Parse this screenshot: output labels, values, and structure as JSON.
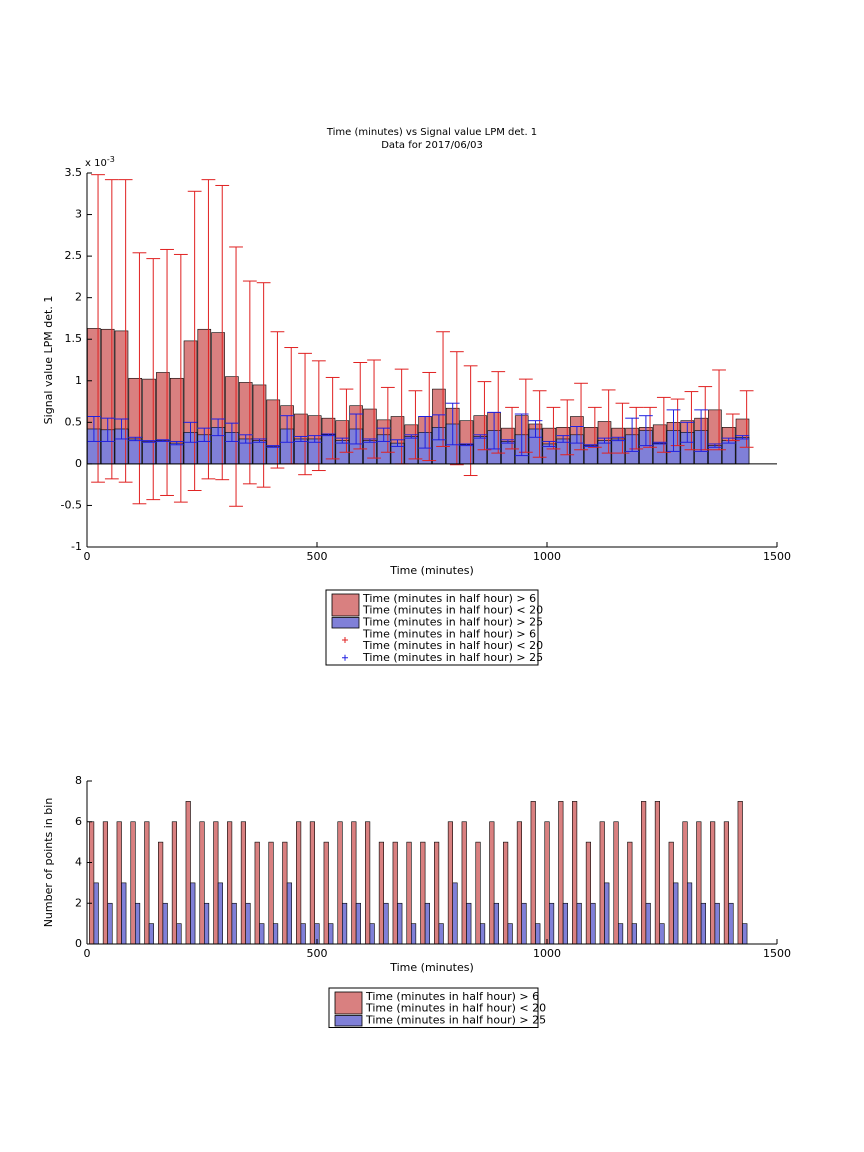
{
  "chart_data": [
    {
      "type": "bar_overlay_error",
      "title": "Time (minutes) vs Signal value LPM det. 1",
      "subtitle": "Data for 2017/06/03",
      "x_label": "Time (minutes)",
      "y_label": "Signal value LPM det. 1",
      "y_exponent_label": {
        "base": "x 10",
        "exponent": "-3"
      },
      "x": [
        15,
        45,
        75,
        105,
        135,
        165,
        195,
        225,
        255,
        285,
        315,
        345,
        375,
        405,
        435,
        465,
        495,
        525,
        555,
        585,
        615,
        645,
        675,
        705,
        735,
        765,
        795,
        825,
        855,
        885,
        915,
        945,
        975,
        1005,
        1035,
        1065,
        1095,
        1125,
        1155,
        1185,
        1215,
        1245,
        1275,
        1305,
        1335,
        1365,
        1395,
        1425
      ],
      "xlim": [
        0,
        1500
      ],
      "xticks": [
        0,
        500,
        1000,
        1500
      ],
      "ylim": [
        -1,
        3.5
      ],
      "yticks": [
        -1,
        -0.5,
        0,
        0.5,
        1,
        1.5,
        2,
        2.5,
        3,
        3.5
      ],
      "series": [
        {
          "name": [
            "Time (minutes in half hour) > 6",
            "Time (minutes in half hour) < 20"
          ],
          "color": "#d98080",
          "error_color": "#e02020",
          "values": [
            1.63,
            1.62,
            1.6,
            1.03,
            1.02,
            1.1,
            1.03,
            1.48,
            1.62,
            1.58,
            1.05,
            0.98,
            0.95,
            0.77,
            0.7,
            0.6,
            0.58,
            0.55,
            0.52,
            0.7,
            0.66,
            0.53,
            0.57,
            0.47,
            0.57,
            0.9,
            0.67,
            0.52,
            0.58,
            0.62,
            0.43,
            0.58,
            0.48,
            0.43,
            0.44,
            0.57,
            0.44,
            0.51,
            0.43,
            0.43,
            0.44,
            0.47,
            0.5,
            0.52,
            0.55,
            0.65,
            0.44,
            0.54
          ],
          "errors": [
            1.85,
            1.8,
            1.82,
            1.51,
            1.45,
            1.48,
            1.49,
            1.8,
            1.8,
            1.77,
            1.56,
            1.22,
            1.23,
            0.82,
            0.7,
            0.73,
            0.66,
            0.49,
            0.38,
            0.52,
            0.59,
            0.39,
            0.57,
            0.41,
            0.53,
            0.69,
            0.68,
            0.66,
            0.41,
            0.49,
            0.25,
            0.44,
            0.4,
            0.25,
            0.33,
            0.4,
            0.24,
            0.38,
            0.3,
            0.25,
            0.24,
            0.33,
            0.28,
            0.35,
            0.38,
            0.48,
            0.16,
            0.34
          ]
        },
        {
          "name": "Time (minutes in half hour) > 25",
          "color": "#8080d8",
          "error_color": "#2020e0",
          "values": [
            0.42,
            0.41,
            0.42,
            0.3,
            0.27,
            0.28,
            0.25,
            0.38,
            0.35,
            0.44,
            0.38,
            0.3,
            0.28,
            0.21,
            0.42,
            0.3,
            0.3,
            0.35,
            0.28,
            0.42,
            0.28,
            0.35,
            0.25,
            0.33,
            0.38,
            0.44,
            0.48,
            0.23,
            0.33,
            0.4,
            0.27,
            0.35,
            0.42,
            0.24,
            0.3,
            0.35,
            0.22,
            0.28,
            0.3,
            0.35,
            0.4,
            0.25,
            0.4,
            0.38,
            0.4,
            0.22,
            0.28,
            0.32
          ],
          "errors": [
            0.15,
            0.14,
            0.12,
            0.02,
            0.01,
            0.01,
            0.02,
            0.12,
            0.08,
            0.1,
            0.11,
            0.05,
            0.02,
            0.01,
            0.16,
            0.03,
            0.04,
            0.01,
            0.03,
            0.18,
            0.02,
            0.08,
            0.04,
            0.02,
            0.19,
            0.15,
            0.25,
            0.01,
            0.02,
            0.22,
            0.02,
            0.25,
            0.1,
            0.03,
            0.04,
            0.1,
            0.01,
            0.03,
            0.02,
            0.2,
            0.18,
            0.01,
            0.25,
            0.12,
            0.25,
            0.02,
            0.03,
            0.02
          ]
        }
      ]
    },
    {
      "type": "grouped_bar",
      "x_label": "Time (minutes)",
      "y_label": "Number of points in bin",
      "x": [
        15,
        45,
        75,
        105,
        135,
        165,
        195,
        225,
        255,
        285,
        315,
        345,
        375,
        405,
        435,
        465,
        495,
        525,
        555,
        585,
        615,
        645,
        675,
        705,
        735,
        765,
        795,
        825,
        855,
        885,
        915,
        945,
        975,
        1005,
        1035,
        1065,
        1095,
        1125,
        1155,
        1185,
        1215,
        1245,
        1275,
        1305,
        1335,
        1365,
        1395,
        1425
      ],
      "xlim": [
        0,
        1500
      ],
      "xticks": [
        0,
        500,
        1000,
        1500
      ],
      "ylim": [
        0,
        8
      ],
      "yticks": [
        0,
        2,
        4,
        6,
        8
      ],
      "series": [
        {
          "name": [
            "Time (minutes in half hour) > 6",
            "Time (minutes in half hour) < 20"
          ],
          "color": "#d98080",
          "values": [
            6,
            6,
            6,
            6,
            6,
            5,
            6,
            7,
            6,
            6,
            6,
            6,
            5,
            5,
            5,
            6,
            6,
            5,
            6,
            6,
            6,
            5,
            5,
            5,
            5,
            5,
            6,
            6,
            5,
            6,
            5,
            6,
            7,
            6,
            7,
            7,
            5,
            6,
            6,
            5,
            7,
            7,
            5,
            6,
            6,
            6,
            6,
            7
          ]
        },
        {
          "name": "Time (minutes in half hour) > 25",
          "color": "#8080d8",
          "values": [
            3,
            2,
            3,
            2,
            1,
            2,
            1,
            3,
            2,
            3,
            2,
            2,
            1,
            1,
            3,
            1,
            1,
            1,
            2,
            2,
            1,
            2,
            2,
            1,
            2,
            1,
            3,
            2,
            1,
            2,
            1,
            2,
            1,
            2,
            2,
            2,
            2,
            3,
            1,
            1,
            2,
            1,
            3,
            3,
            2,
            2,
            2,
            1
          ]
        }
      ]
    }
  ]
}
